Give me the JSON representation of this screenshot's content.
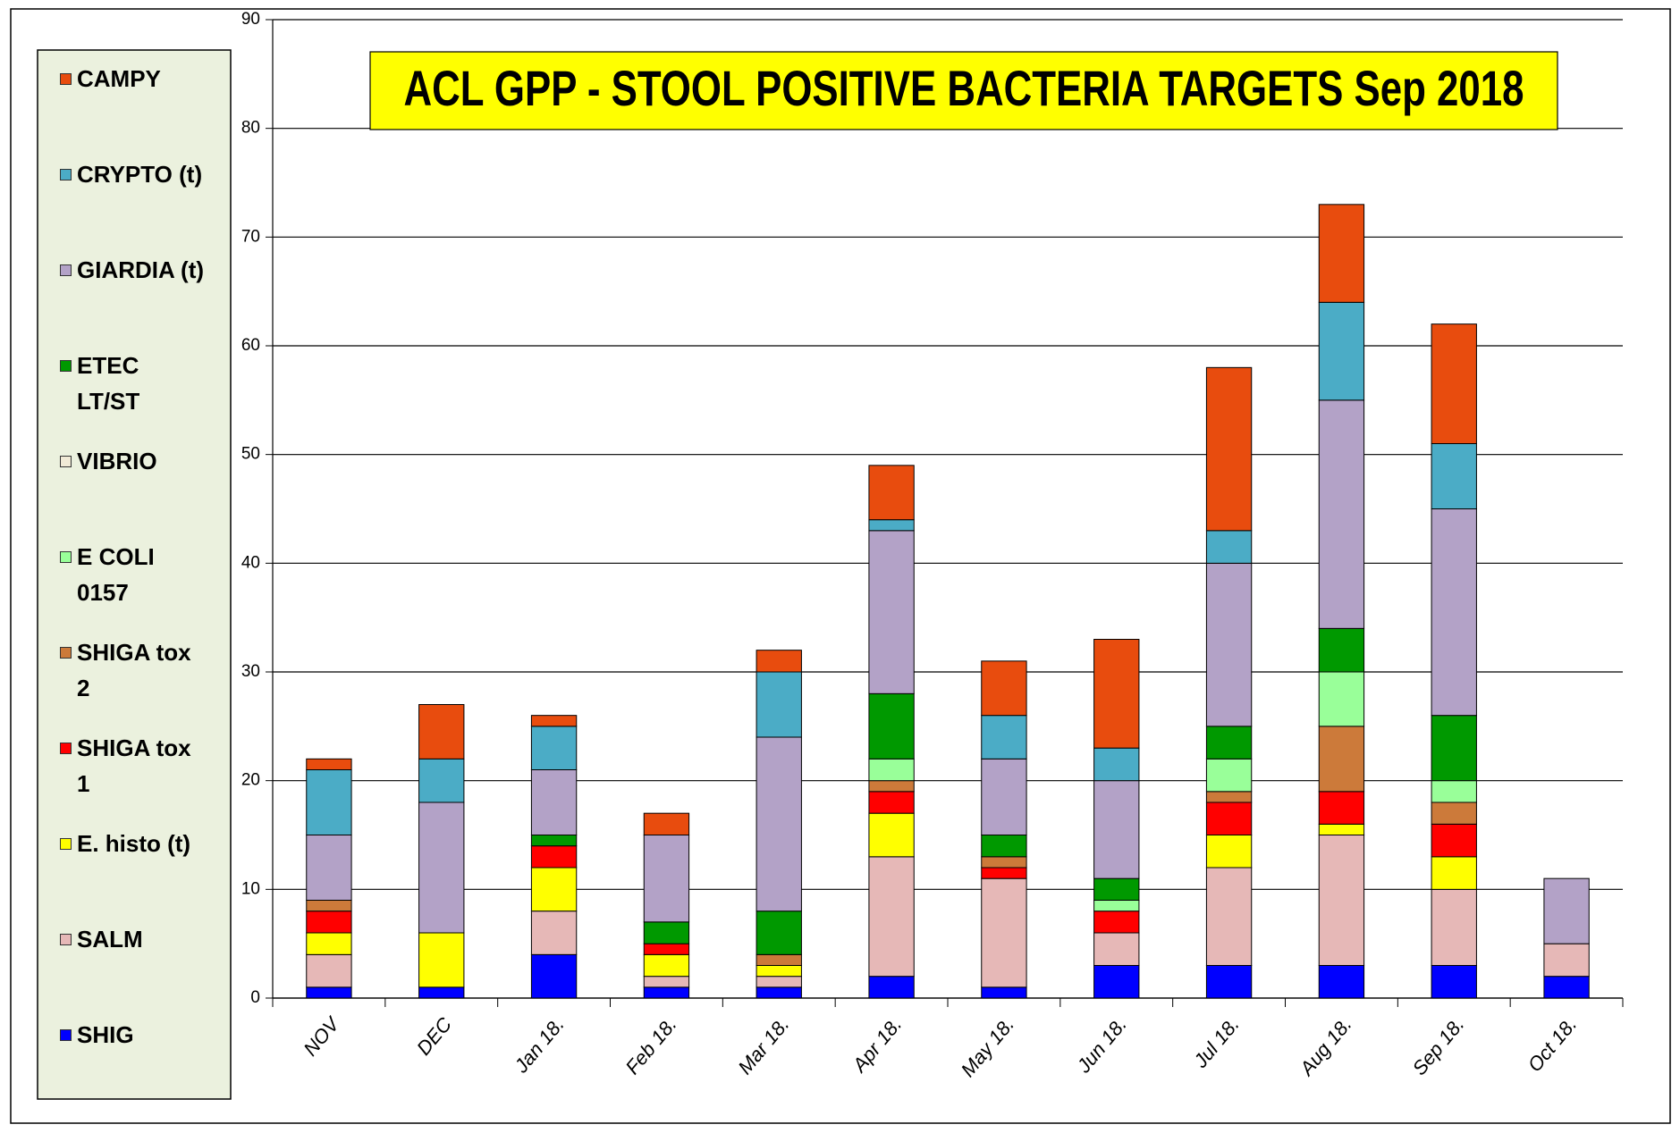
{
  "chart_data": {
    "type": "stacked_bar",
    "title": "ACL GPP - STOOL POSITIVE BACTERIA TARGETS Sep 2018",
    "categories": [
      "NOV",
      "DEC",
      "Jan 18.",
      "Feb 18.",
      "Mar 18.",
      "Apr 18.",
      "May 18.",
      "Jun 18.",
      "Jul 18.",
      "Aug 18.",
      "Sep 18.",
      "Oct 18."
    ],
    "series": [
      {
        "name": "SHIG",
        "color": "#0000ff",
        "values": [
          1,
          1,
          4,
          1,
          1,
          2,
          1,
          3,
          3,
          3,
          3,
          2
        ]
      },
      {
        "name": "SALM",
        "color": "#e6b8b7",
        "values": [
          3,
          0,
          4,
          1,
          1,
          11,
          10,
          3,
          9,
          12,
          7,
          3
        ]
      },
      {
        "name": "E. histo (t)",
        "color": "#ffff00",
        "values": [
          2,
          5,
          4,
          2,
          1,
          4,
          0,
          0,
          3,
          1,
          3,
          0
        ]
      },
      {
        "name": "SHIGA tox 1",
        "color": "#ff0000",
        "values": [
          2,
          0,
          2,
          1,
          0,
          2,
          1,
          2,
          3,
          3,
          3,
          0
        ]
      },
      {
        "name": "SHIGA tox 2",
        "color": "#cc7a3a",
        "values": [
          1,
          0,
          0,
          0,
          1,
          1,
          1,
          0,
          1,
          6,
          2,
          0
        ]
      },
      {
        "name": "E COLI 0157",
        "color": "#99ff99",
        "values": [
          0,
          0,
          0,
          0,
          0,
          2,
          0,
          1,
          3,
          5,
          2,
          0
        ]
      },
      {
        "name": "VIBRIO",
        "color": "#f0ead6",
        "values": [
          0,
          0,
          0,
          0,
          0,
          0,
          0,
          0,
          0,
          0,
          0,
          0
        ]
      },
      {
        "name": "ETEC LT/ST",
        "color": "#009900",
        "values": [
          0,
          0,
          1,
          2,
          4,
          6,
          2,
          2,
          3,
          4,
          6,
          0
        ]
      },
      {
        "name": "GIARDIA (t)",
        "color": "#b3a2c7",
        "values": [
          6,
          12,
          6,
          8,
          16,
          15,
          7,
          9,
          15,
          21,
          19,
          6
        ]
      },
      {
        "name": "CRYPTO (t)",
        "color": "#4bacc6",
        "values": [
          6,
          4,
          4,
          0,
          6,
          1,
          4,
          3,
          3,
          9,
          6,
          0
        ]
      },
      {
        "name": "CAMPY",
        "color": "#e84c0e",
        "values": [
          1,
          5,
          1,
          2,
          2,
          5,
          5,
          10,
          15,
          9,
          11,
          0
        ]
      }
    ],
    "ylim": [
      0,
      90
    ],
    "yticks": [
      0,
      10,
      20,
      30,
      40,
      50,
      60,
      70,
      80,
      90
    ],
    "grid": true
  }
}
